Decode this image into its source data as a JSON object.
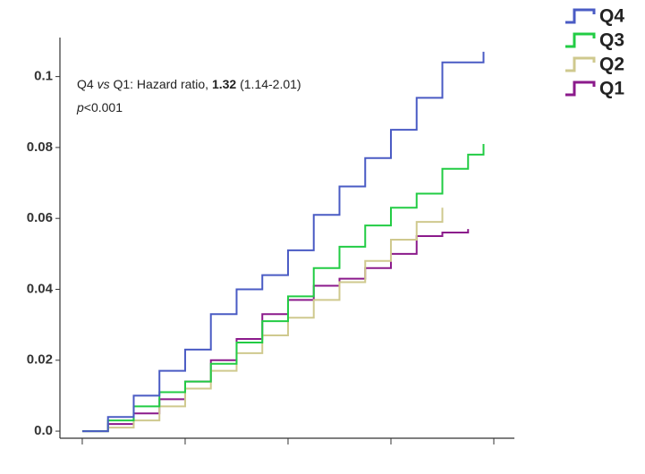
{
  "chart_data": {
    "type": "step",
    "annotation": {
      "line1": [
        "Q4 ",
        "vs",
        " Q1: Hazard ratio, ",
        "1.32",
        " (1.14-2.01)"
      ],
      "line2": [
        "p",
        "<0.001"
      ]
    },
    "x": [
      0,
      0.25,
      0.5,
      0.75,
      1,
      1.25,
      1.5,
      1.75,
      2,
      2.25,
      2.5,
      2.75,
      3,
      3.25,
      3.5,
      3.75,
      3.9
    ],
    "series": [
      {
        "name": "Q4",
        "color": "#4a5bc4",
        "values": [
          0,
          0.004,
          0.01,
          0.017,
          0.023,
          0.033,
          0.04,
          0.044,
          0.051,
          0.061,
          0.069,
          0.077,
          0.085,
          0.094,
          0.104,
          0.104,
          0.107
        ]
      },
      {
        "name": "Q3",
        "color": "#22cc44",
        "values": [
          0,
          0.003,
          0.007,
          0.011,
          0.014,
          0.019,
          0.025,
          0.031,
          0.038,
          0.046,
          0.052,
          0.058,
          0.063,
          0.067,
          0.074,
          0.078,
          0.081
        ]
      },
      {
        "name": "Q2",
        "color": "#cfc98e",
        "values": [
          0,
          0.001,
          0.003,
          0.007,
          0.012,
          0.017,
          0.022,
          0.027,
          0.032,
          0.037,
          0.042,
          0.048,
          0.054,
          0.059,
          0.063,
          null,
          null
        ]
      },
      {
        "name": "Q1",
        "color": "#8b1a8b",
        "values": [
          0,
          0.002,
          0.005,
          0.009,
          0.014,
          0.02,
          0.026,
          0.033,
          0.037,
          0.041,
          0.043,
          0.046,
          0.05,
          0.055,
          0.056,
          0.057,
          null
        ]
      }
    ],
    "xlim": [
      -0.217,
      4.2
    ],
    "xticks": [
      0,
      1,
      2,
      3,
      4
    ],
    "ylim": [
      -0.002,
      0.111
    ],
    "yticks": [
      {
        "value": 0,
        "label": "0.0"
      },
      0.02,
      0.04,
      0.06,
      0.08,
      0.1
    ],
    "legend": "top-right"
  }
}
